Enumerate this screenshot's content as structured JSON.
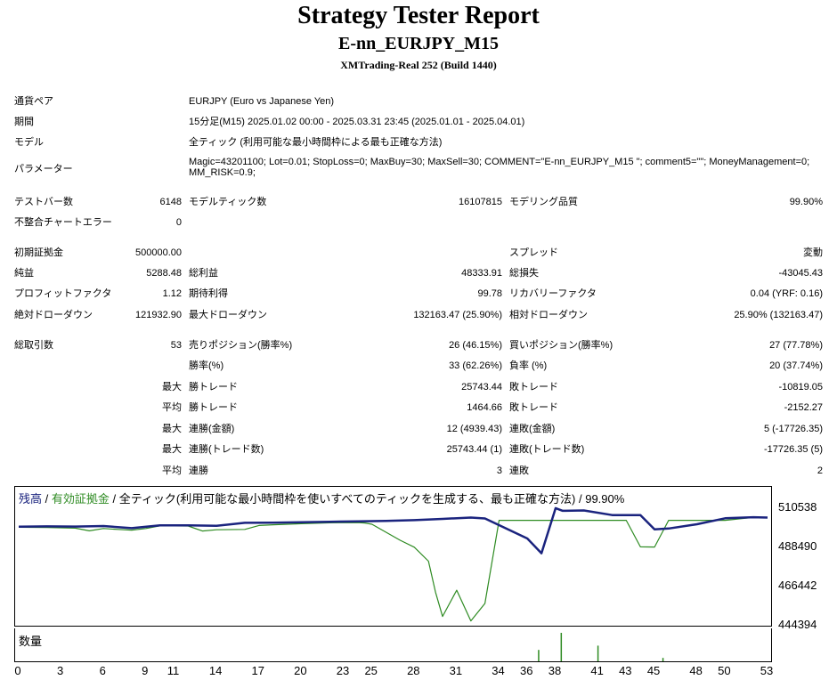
{
  "header": {
    "title": "Strategy Tester Report",
    "subtitle": "E-nn_EURJPY_M15",
    "server": "XMTrading-Real 252 (Build 1440)"
  },
  "settings": {
    "symbol_label": "通貨ペア",
    "symbol_value": "EURJPY (Euro vs Japanese Yen)",
    "period_label": "期間",
    "period_value": "15分足(M15) 2025.01.02 00:00 - 2025.03.31 23:45 (2025.01.01 - 2025.04.01)",
    "model_label": "モデル",
    "model_value": "全ティック (利用可能な最小時間枠による最も正確な方法)",
    "params_label": "パラメーター",
    "params_value": "Magic=43201100; Lot=0.01; StopLoss=0; MaxBuy=30; MaxSell=30; COMMENT=\"E-nn_EURJPY_M15 \"; comment5=\"\"; MoneyManagement=0; MM_RISK=0.9;"
  },
  "stats": {
    "bars_label": "テストバー数",
    "bars_value": "6148",
    "ticks_label": "モデルティック数",
    "ticks_value": "16107815",
    "quality_label": "モデリング品質",
    "quality_value": "99.90%",
    "mismatch_label": "不整合チャートエラー",
    "mismatch_value": "0",
    "deposit_label": "初期証拠金",
    "deposit_value": "500000.00",
    "spread_label": "スプレッド",
    "spread_value": "変動",
    "net_label": "純益",
    "net_value": "5288.48",
    "gross_profit_label": "総利益",
    "gross_profit_value": "48333.91",
    "gross_loss_label": "総損失",
    "gross_loss_value": "-43045.43",
    "pf_label": "プロフィットファクタ",
    "pf_value": "1.12",
    "expected_label": "期待利得",
    "expected_value": "99.78",
    "recovery_label": "リカバリーファクタ",
    "recovery_value": "0.04 (YRF: 0.16)",
    "abs_dd_label": "絶対ドローダウン",
    "abs_dd_value": "121932.90",
    "max_dd_label": "最大ドローダウン",
    "max_dd_value": "132163.47 (25.90%)",
    "rel_dd_label": "相対ドローダウン",
    "rel_dd_value": "25.90% (132163.47)",
    "trades_label": "総取引数",
    "trades_value": "53",
    "short_label": "売りポジション(勝率%)",
    "short_value": "26 (46.15%)",
    "long_label": "買いポジション(勝率%)",
    "long_value": "27 (77.78%)",
    "win_rate_label": "勝率(%)",
    "win_rate_value": "33 (62.26%)",
    "loss_rate_label": "負率 (%)",
    "loss_rate_value": "20 (37.74%)",
    "max_label": "最大",
    "avg_label": "平均",
    "largest_win_label": "勝トレード",
    "largest_win_value": "25743.44",
    "largest_loss_label": "敗トレード",
    "largest_loss_value": "-10819.05",
    "avg_win_label": "勝トレード",
    "avg_win_value": "1464.66",
    "avg_loss_label": "敗トレード",
    "avg_loss_value": "-2152.27",
    "max_consec_wins_label": "連勝(金額)",
    "max_consec_wins_value": "12 (4939.43)",
    "max_consec_losses_label": "連敗(金額)",
    "max_consec_losses_value": "5 (-17726.35)",
    "max_consec_profit_label": "連勝(トレード数)",
    "max_consec_profit_value": "25743.44 (1)",
    "max_consec_loss_label": "連敗(トレード数)",
    "max_consec_loss_value": "-17726.35 (5)",
    "avg_consec_wins_label": "連勝",
    "avg_consec_wins_value": "3",
    "avg_consec_losses_label": "連敗",
    "avg_consec_losses_value": "2"
  },
  "chart_legend": {
    "balance": "残高",
    "sep1": " / ",
    "equity": "有効証拠金",
    "rest": " / 全ティック(利用可能な最小時間枠を使いすべてのティックを生成する、最も正確な方法) / 99.90%"
  },
  "volume_label": "数量",
  "colors": {
    "balance": "#1a237e",
    "equity": "#2e8b22",
    "border": "#000000"
  },
  "chart_data": {
    "type": "line",
    "y_ticks": [
      "510538",
      "488490",
      "466442",
      "444394"
    ],
    "y_tick_values": [
      510538,
      488490,
      466442,
      444394
    ],
    "ylim": [
      444394,
      510538
    ],
    "x_ticks": [
      "0",
      "3",
      "6",
      "9",
      "11",
      "14",
      "17",
      "20",
      "23",
      "25",
      "28",
      "31",
      "34",
      "36",
      "38",
      "41",
      "43",
      "45",
      "48",
      "50",
      "53"
    ],
    "x_tick_values": [
      0,
      3,
      6,
      9,
      11,
      14,
      17,
      20,
      23,
      25,
      28,
      31,
      34,
      36,
      38,
      41,
      43,
      45,
      48,
      50,
      53
    ],
    "xlim": [
      0,
      53
    ],
    "series": [
      {
        "name": "残高",
        "x": [
          0,
          2,
          4,
          6,
          8,
          10,
          12,
          14,
          16,
          18,
          20,
          22,
          24,
          26,
          28,
          30,
          32,
          33,
          36,
          37,
          38,
          38.5,
          40,
          42,
          44,
          45,
          46,
          48,
          50,
          52,
          53
        ],
        "y": [
          500100,
          500300,
          500200,
          500500,
          499300,
          500900,
          500900,
          500600,
          502300,
          502400,
          502600,
          502900,
          503100,
          503400,
          503800,
          504500,
          505300,
          504800,
          493500,
          485200,
          510600,
          509100,
          509300,
          506700,
          506700,
          498600,
          499100,
          501500,
          504900,
          505500,
          505300
        ]
      },
      {
        "name": "有効証拠金",
        "x": [
          0,
          2,
          4,
          5,
          6,
          7,
          8,
          9,
          10,
          12,
          13,
          14,
          16,
          17,
          18,
          20,
          22,
          24,
          24.5,
          25,
          27,
          28,
          29,
          29.5,
          30,
          31,
          32,
          33,
          34,
          35,
          37,
          38,
          39,
          41,
          42,
          43,
          44,
          45,
          46,
          48,
          50,
          52,
          53
        ],
        "y": [
          499800,
          499700,
          499300,
          497800,
          499100,
          498600,
          498200,
          499100,
          500600,
          500500,
          497700,
          498400,
          498600,
          500800,
          501200,
          501800,
          502300,
          502400,
          502200,
          501500,
          492500,
          488600,
          480700,
          463300,
          449600,
          464400,
          447100,
          456900,
          503700,
          503700,
          503700,
          503700,
          503700,
          503700,
          503700,
          503700,
          488800,
          488700,
          503700,
          503700,
          503700,
          505400,
          505400
        ]
      }
    ],
    "volume": {
      "name": "数量",
      "x": [
        36.8,
        38.4,
        41,
        45.6
      ],
      "y": [
        0.4,
        1,
        0.55,
        0.12
      ]
    },
    "grid": false
  }
}
